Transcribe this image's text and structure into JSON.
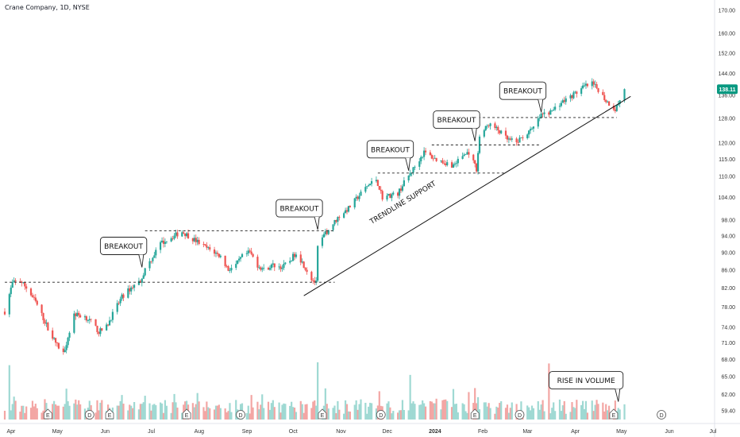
{
  "header": {
    "title": "Crane Company, 1D, NYSE"
  },
  "colors": {
    "up": "#26a69a",
    "down": "#ef5350",
    "text": "#131722",
    "axis_text": "#333333",
    "price_badge": "#089981"
  },
  "chart_data": {
    "type": "candlestick",
    "title": "Crane Company, 1D, NYSE",
    "scale": "log",
    "grid": false,
    "price_axis": {
      "ticks": [
        170.0,
        160.0,
        152.0,
        144.0,
        136.0,
        128.0,
        120.0,
        115.0,
        110.0,
        104.0,
        98.0,
        94.0,
        90.0,
        86.0,
        82.0,
        78.0,
        74.0,
        71.0,
        68.0,
        65.0,
        62.0,
        59.4
      ],
      "tick_labels": [
        "170.00",
        "160.00",
        "152.00",
        "144.00",
        "136.00",
        "128.00",
        "120.00",
        "115.00",
        "110.00",
        "104.00",
        "98.00",
        "94.00",
        "90.00",
        "86.00",
        "82.00",
        "78.00",
        "74.00",
        "71.00",
        "68.00",
        "65.00",
        "62.00",
        "59.40"
      ],
      "range": [
        58.5,
        172
      ]
    },
    "time_axis": {
      "labels": [
        "Apr",
        "May",
        "Jun",
        "Jul",
        "Aug",
        "Sep",
        "Oct",
        "Nov",
        "Dec",
        "2024",
        "Feb",
        "Mar",
        "Apr",
        "May",
        "Jun",
        "Jul"
      ],
      "bold": [
        "2024"
      ],
      "range": [
        "2023-03-31",
        "2024-07-05"
      ]
    },
    "last_price": {
      "value": 138.11,
      "label": "138.11"
    },
    "anchors": [
      [
        "2023-03-31",
        77
      ],
      [
        "2023-04-05",
        83
      ],
      [
        "2023-04-10",
        83.5
      ],
      [
        "2023-04-14",
        82
      ],
      [
        "2023-04-20",
        79
      ],
      [
        "2023-04-26",
        75
      ],
      [
        "2023-05-01",
        72
      ],
      [
        "2023-05-04",
        70.5
      ],
      [
        "2023-05-08",
        69
      ],
      [
        "2023-05-11",
        72
      ],
      [
        "2023-05-15",
        76.5
      ],
      [
        "2023-05-22",
        76
      ],
      [
        "2023-05-26",
        75
      ],
      [
        "2023-05-31",
        73
      ],
      [
        "2023-06-05",
        74
      ],
      [
        "2023-06-09",
        76.5
      ],
      [
        "2023-06-15",
        80
      ],
      [
        "2023-06-21",
        82
      ],
      [
        "2023-06-27",
        83.5
      ],
      [
        "2023-06-30",
        86
      ],
      [
        "2023-07-05",
        89
      ],
      [
        "2023-07-10",
        92
      ],
      [
        "2023-07-14",
        93
      ],
      [
        "2023-07-19",
        94
      ],
      [
        "2023-07-24",
        95
      ],
      [
        "2023-07-28",
        94
      ],
      [
        "2023-08-03",
        92.5
      ],
      [
        "2023-08-09",
        91
      ],
      [
        "2023-08-14",
        90
      ],
      [
        "2023-08-18",
        89
      ],
      [
        "2023-08-23",
        86
      ],
      [
        "2023-08-28",
        87
      ],
      [
        "2023-09-01",
        89
      ],
      [
        "2023-09-06",
        90
      ],
      [
        "2023-09-11",
        87
      ],
      [
        "2023-09-15",
        86
      ],
      [
        "2023-09-21",
        87
      ],
      [
        "2023-09-27",
        86.5
      ],
      [
        "2023-10-02",
        88
      ],
      [
        "2023-10-06",
        90
      ],
      [
        "2023-10-11",
        87
      ],
      [
        "2023-10-16",
        84
      ],
      [
        "2023-10-19",
        83
      ],
      [
        "2023-10-20",
        91
      ],
      [
        "2023-10-24",
        94
      ],
      [
        "2023-10-30",
        97
      ],
      [
        "2023-11-03",
        99
      ],
      [
        "2023-11-09",
        101
      ],
      [
        "2023-11-15",
        104
      ],
      [
        "2023-11-21",
        107
      ],
      [
        "2023-11-27",
        109
      ],
      [
        "2023-12-01",
        104
      ],
      [
        "2023-12-06",
        104.5
      ],
      [
        "2023-12-11",
        105
      ],
      [
        "2023-12-15",
        108
      ],
      [
        "2023-12-21",
        112
      ],
      [
        "2023-12-28",
        117
      ],
      [
        "2024-01-04",
        115
      ],
      [
        "2024-01-10",
        114
      ],
      [
        "2024-01-16",
        113
      ],
      [
        "2024-01-22",
        116
      ],
      [
        "2024-01-26",
        117
      ],
      [
        "2024-01-31",
        112
      ],
      [
        "2024-02-02",
        122
      ],
      [
        "2024-02-08",
        126
      ],
      [
        "2024-02-14",
        124
      ],
      [
        "2024-02-20",
        121
      ],
      [
        "2024-02-26",
        120
      ],
      [
        "2024-03-01",
        122
      ],
      [
        "2024-03-07",
        124
      ],
      [
        "2024-03-13",
        129
      ],
      [
        "2024-03-19",
        130
      ],
      [
        "2024-03-25",
        133
      ],
      [
        "2024-03-31",
        135
      ],
      [
        "2024-04-05",
        137
      ],
      [
        "2024-04-10",
        139
      ],
      [
        "2024-04-15",
        140
      ],
      [
        "2024-04-19",
        138
      ],
      [
        "2024-04-24",
        134
      ],
      [
        "2024-04-30",
        131
      ],
      [
        "2024-05-03",
        134
      ],
      [
        "2024-05-06",
        138.11
      ]
    ],
    "volume": {
      "earnings_marker": "E",
      "dividend_marker": "D",
      "markers": [
        {
          "date": "2023-04-28",
          "type": "E"
        },
        {
          "date": "2023-05-25",
          "type": "D"
        },
        {
          "date": "2023-06-07",
          "type": "E"
        },
        {
          "date": "2023-07-27",
          "type": "E"
        },
        {
          "date": "2023-08-31",
          "type": "D"
        },
        {
          "date": "2023-10-23",
          "type": "E"
        },
        {
          "date": "2023-11-30",
          "type": "D"
        },
        {
          "date": "2024-01-30",
          "type": "E"
        },
        {
          "date": "2024-02-28",
          "type": "D"
        },
        {
          "date": "2024-04-29",
          "type": "E"
        },
        {
          "date": "2024-05-30",
          "type": "D"
        }
      ],
      "spikes": [
        [
          "2023-04-03",
          0.95
        ],
        [
          "2023-10-20",
          1.0
        ],
        [
          "2023-12-19",
          0.78
        ],
        [
          "2024-03-18",
          0.98
        ],
        [
          "2024-01-30",
          0.55
        ]
      ]
    },
    "levels": [
      {
        "price": 83.2,
        "from": "2023-03-31",
        "to": "2023-10-31",
        "style": "dashed"
      },
      {
        "price": 95.2,
        "from": "2023-06-30",
        "to": "2023-10-31",
        "style": "dashed"
      },
      {
        "price": 110.8,
        "from": "2023-11-28",
        "to": "2024-02-19",
        "style": "dashed"
      },
      {
        "price": 119.3,
        "from": "2024-01-02",
        "to": "2024-03-12",
        "style": "dashed"
      },
      {
        "price": 128.2,
        "from": "2024-02-01",
        "to": "2024-05-01",
        "style": "dashed"
      }
    ],
    "trendline": {
      "from": [
        "2023-10-11",
        80.3
      ],
      "to": [
        "2024-05-10",
        135.5
      ],
      "label": "TRENDLINE SUPPORT"
    },
    "annotations": [
      {
        "text": "BREAKOUT",
        "anchor": [
          "2023-06-28",
          86.5
        ]
      },
      {
        "text": "BREAKOUT",
        "anchor": [
          "2023-10-20",
          95.5
        ]
      },
      {
        "text": "BREAKOUT",
        "anchor": [
          "2023-12-18",
          111.5
        ]
      },
      {
        "text": "BREAKOUT",
        "anchor": [
          "2024-01-30",
          120.5
        ]
      },
      {
        "text": "BREAKOUT",
        "anchor": [
          "2024-03-13",
          130
        ]
      },
      {
        "text": "RISE IN VOLUME",
        "anchor": [
          "2024-05-02",
          60.8
        ]
      }
    ]
  }
}
